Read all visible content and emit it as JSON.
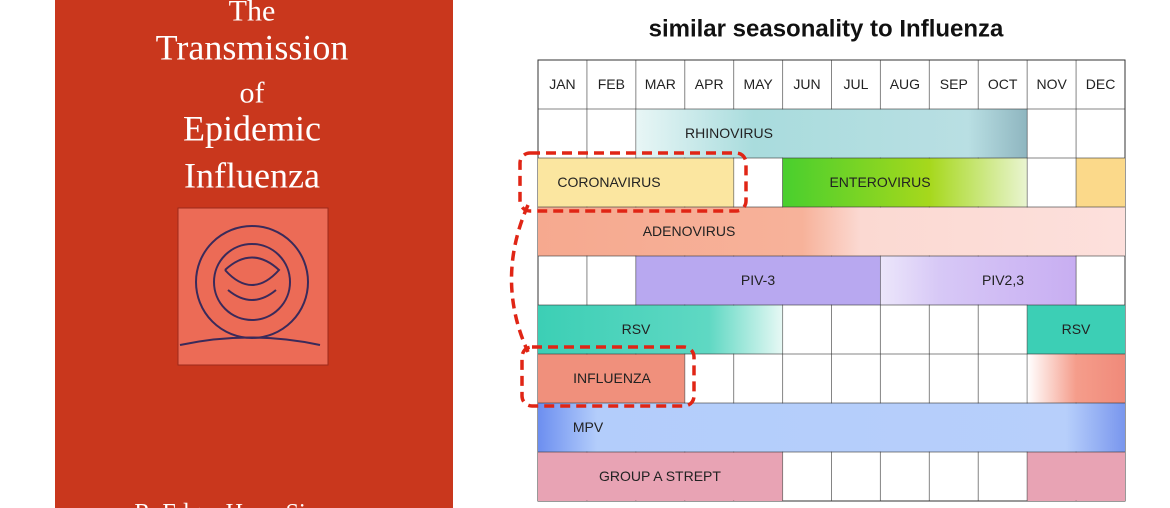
{
  "book": {
    "title_lines": [
      "The",
      "Transmission",
      "of",
      "Epidemic",
      "Influenza"
    ],
    "author": "R. Edgar Hope-Simpson"
  },
  "slide": {
    "title": "similar seasonality to Influenza",
    "months": [
      "JAN",
      "FEB",
      "MAR",
      "APR",
      "MAY",
      "JUN",
      "JUL",
      "AUG",
      "SEP",
      "OCT",
      "NOV",
      "DEC"
    ],
    "rows": [
      {
        "segments": [
          {
            "label": "RHINOVIRUS"
          }
        ]
      },
      {
        "segments": [
          {
            "label": "CORONAVIRUS"
          },
          {
            "label": "ENTEROVIRUS"
          }
        ]
      },
      {
        "segments": [
          {
            "label": "ADENOVIRUS"
          }
        ]
      },
      {
        "segments": [
          {
            "label": "PIV-3"
          },
          {
            "label": "PIV2,3"
          }
        ]
      },
      {
        "segments": [
          {
            "label": "RSV"
          },
          {
            "label": "RSV"
          }
        ]
      },
      {
        "segments": [
          {
            "label": "INFLUENZA"
          }
        ]
      },
      {
        "segments": [
          {
            "label": "MPV"
          }
        ]
      },
      {
        "segments": [
          {
            "label": "GROUP A STREPT"
          }
        ]
      }
    ]
  }
}
